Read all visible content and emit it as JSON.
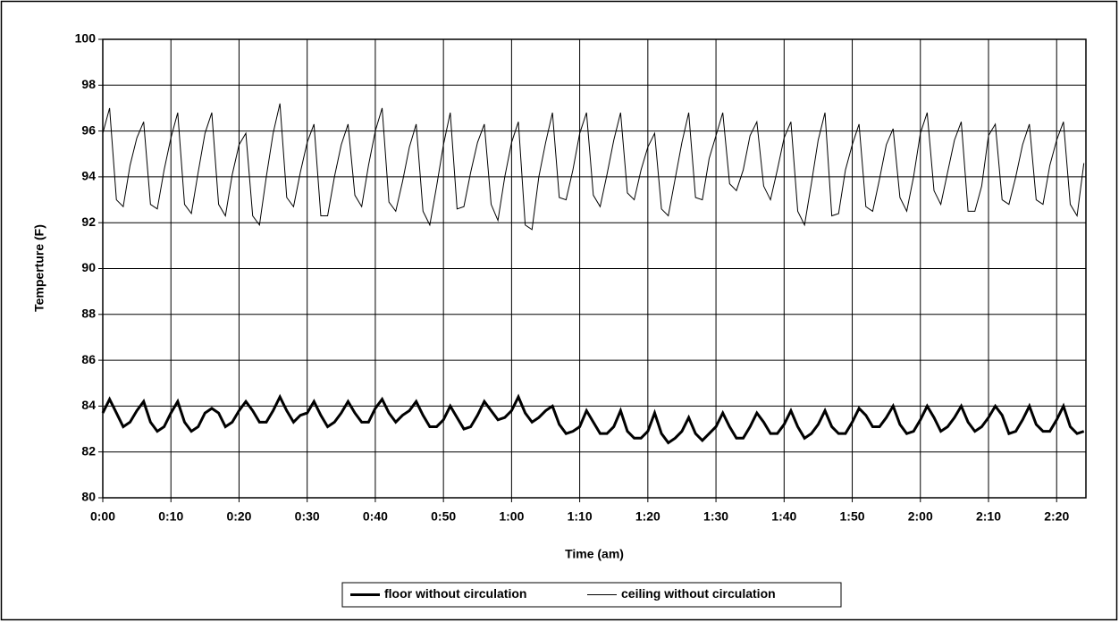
{
  "chart_data": {
    "type": "line",
    "x_label": "Time (am)",
    "y_label": "Temperture (F)",
    "x": [
      0,
      1,
      2,
      3,
      4,
      5,
      6,
      7,
      8,
      9,
      10,
      11,
      12,
      13,
      14,
      15,
      16,
      17,
      18,
      19,
      20,
      21,
      22,
      23,
      24,
      25,
      26,
      27,
      28,
      29,
      30,
      31,
      32,
      33,
      34,
      35,
      36,
      37,
      38,
      39,
      40,
      41,
      42,
      43,
      44,
      45,
      46,
      47,
      48,
      49,
      50,
      51,
      52,
      53,
      54,
      55,
      56,
      57,
      58,
      59,
      60,
      61,
      62,
      63,
      64,
      65,
      66,
      67,
      68,
      69,
      70,
      71,
      72,
      73,
      74,
      75,
      76,
      77,
      78,
      79,
      80,
      81,
      82,
      83,
      84,
      85,
      86,
      87,
      88,
      89,
      90,
      91,
      92,
      93,
      94,
      95,
      96,
      97,
      98,
      99,
      100,
      101,
      102,
      103,
      104,
      105,
      106,
      107,
      108,
      109,
      110,
      111,
      112,
      113,
      114,
      115,
      116,
      117,
      118,
      119,
      120,
      121,
      122,
      123,
      124,
      125,
      126,
      127,
      128,
      129,
      130,
      131,
      132,
      133,
      134,
      135,
      136,
      137,
      138,
      139,
      140,
      141,
      142,
      143,
      144
    ],
    "series": [
      {
        "name": "floor without circulation",
        "color": "#000000",
        "width": 3,
        "values": [
          83.7,
          84.3,
          83.7,
          83.1,
          83.3,
          83.8,
          84.2,
          83.3,
          82.9,
          83.1,
          83.7,
          84.2,
          83.3,
          82.9,
          83.1,
          83.7,
          83.9,
          83.7,
          83.1,
          83.3,
          83.8,
          84.2,
          83.8,
          83.3,
          83.3,
          83.8,
          84.4,
          83.8,
          83.3,
          83.6,
          83.7,
          84.2,
          83.6,
          83.1,
          83.3,
          83.7,
          84.2,
          83.7,
          83.3,
          83.3,
          83.9,
          84.3,
          83.7,
          83.3,
          83.6,
          83.8,
          84.2,
          83.6,
          83.1,
          83.1,
          83.4,
          84.0,
          83.5,
          83.0,
          83.1,
          83.6,
          84.2,
          83.8,
          83.4,
          83.5,
          83.8,
          84.4,
          83.7,
          83.3,
          83.5,
          83.8,
          84.0,
          83.2,
          82.8,
          82.9,
          83.1,
          83.8,
          83.3,
          82.8,
          82.8,
          83.1,
          83.8,
          82.9,
          82.6,
          82.6,
          82.9,
          83.7,
          82.8,
          82.4,
          82.6,
          82.9,
          83.5,
          82.8,
          82.5,
          82.8,
          83.1,
          83.7,
          83.1,
          82.6,
          82.6,
          83.1,
          83.7,
          83.3,
          82.8,
          82.8,
          83.2,
          83.8,
          83.1,
          82.6,
          82.8,
          83.2,
          83.8,
          83.1,
          82.8,
          82.8,
          83.3,
          83.9,
          83.6,
          83.1,
          83.1,
          83.5,
          84.0,
          83.2,
          82.8,
          82.9,
          83.4,
          84.0,
          83.5,
          82.9,
          83.1,
          83.5,
          84.0,
          83.3,
          82.9,
          83.1,
          83.5,
          84.0,
          83.6,
          82.8,
          82.9,
          83.4,
          84.0,
          83.2,
          82.9,
          82.9,
          83.4,
          84.0,
          83.1,
          82.8,
          82.9
        ]
      },
      {
        "name": "ceiling without circulation",
        "color": "#000000",
        "width": 1,
        "values": [
          95.9,
          97.0,
          93.0,
          92.7,
          94.5,
          95.7,
          96.4,
          92.8,
          92.6,
          94.3,
          95.7,
          96.8,
          92.8,
          92.4,
          94.2,
          95.9,
          96.8,
          92.8,
          92.3,
          94.1,
          95.4,
          95.9,
          92.3,
          91.9,
          94.0,
          95.9,
          97.2,
          93.1,
          92.7,
          94.2,
          95.5,
          96.3,
          92.3,
          92.3,
          94.0,
          95.4,
          96.3,
          93.2,
          92.7,
          94.5,
          96.0,
          97.0,
          92.9,
          92.5,
          93.8,
          95.3,
          96.3,
          92.5,
          91.9,
          93.6,
          95.4,
          96.8,
          92.6,
          92.7,
          94.2,
          95.5,
          96.3,
          92.8,
          92.1,
          94.0,
          95.5,
          96.4,
          91.9,
          91.7,
          94.0,
          95.5,
          96.8,
          93.1,
          93.0,
          94.3,
          95.9,
          96.8,
          93.2,
          92.7,
          94.1,
          95.6,
          96.8,
          93.3,
          93.0,
          94.3,
          95.3,
          95.9,
          92.6,
          92.3,
          93.9,
          95.5,
          96.8,
          93.1,
          93.0,
          94.8,
          95.8,
          96.8,
          93.7,
          93.4,
          94.3,
          95.8,
          96.4,
          93.6,
          93.0,
          94.3,
          95.7,
          96.4,
          92.5,
          91.9,
          93.7,
          95.6,
          96.8,
          92.3,
          92.4,
          94.3,
          95.4,
          96.3,
          92.7,
          92.5,
          93.9,
          95.4,
          96.1,
          93.1,
          92.5,
          94.0,
          95.9,
          96.8,
          93.4,
          92.8,
          94.2,
          95.6,
          96.4,
          92.5,
          92.5,
          93.6,
          95.8,
          96.3,
          93.0,
          92.8,
          94.0,
          95.4,
          96.3,
          93.0,
          92.8,
          94.5,
          95.6,
          96.4,
          92.8,
          92.3,
          94.6
        ]
      }
    ],
    "xlim": [
      0,
      144.3
    ],
    "xticks": [
      {
        "value": 0,
        "label": "0:00"
      },
      {
        "value": 10,
        "label": "0:10"
      },
      {
        "value": 20,
        "label": "0:20"
      },
      {
        "value": 30,
        "label": "0:30"
      },
      {
        "value": 40,
        "label": "0:40"
      },
      {
        "value": 50,
        "label": "0:50"
      },
      {
        "value": 60,
        "label": "1:00"
      },
      {
        "value": 70,
        "label": "1:10"
      },
      {
        "value": 80,
        "label": "1:20"
      },
      {
        "value": 90,
        "label": "1:30"
      },
      {
        "value": 100,
        "label": "1:40"
      },
      {
        "value": 110,
        "label": "1:50"
      },
      {
        "value": 120,
        "label": "2:00"
      },
      {
        "value": 130,
        "label": "2:10"
      },
      {
        "value": 140,
        "label": "2:20"
      }
    ],
    "ylim": [
      80,
      100
    ],
    "yticks": [
      80,
      82,
      84,
      86,
      88,
      90,
      92,
      94,
      96,
      98,
      100
    ],
    "grid": true,
    "legend": "bottom"
  }
}
